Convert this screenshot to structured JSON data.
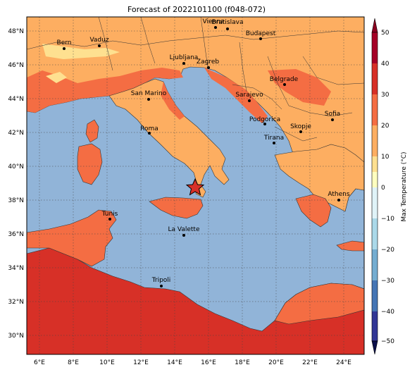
{
  "title": "Forecast of 2022101100 (f048-072)",
  "lon_ticks": [
    "6°E",
    "8°E",
    "10°E",
    "12°E",
    "14°E",
    "16°E",
    "18°E",
    "20°E",
    "22°E",
    "24°E"
  ],
  "lat_ticks": [
    "48°N",
    "46°N",
    "44°N",
    "42°N",
    "40°N",
    "38°N",
    "36°N",
    "34°N",
    "32°N",
    "30°N"
  ],
  "colorbar": {
    "label": "Max Temperature (°C)",
    "ticks": [
      "50",
      "40",
      "30",
      "20",
      "10",
      "0",
      "−10",
      "−20",
      "−30",
      "−40",
      "−50"
    ],
    "colors": [
      "#a50026",
      "#d73027",
      "#f46d43",
      "#fdae61",
      "#fee090",
      "#ffffbf",
      "#e0f3f8",
      "#abd9e9",
      "#74add1",
      "#4575b4",
      "#313695",
      "#2a2f8a"
    ]
  },
  "map_colors": {
    "sea": "#91b4d8",
    "land_20_30": "#fdae61",
    "land_30_40": "#f46d43",
    "land_40_50": "#d73027",
    "land_10_20": "#fee090"
  },
  "marker_icon": "star-marker",
  "cities": [
    {
      "name": "Bern"
    },
    {
      "name": "Vaduz"
    },
    {
      "name": "Vienna"
    },
    {
      "name": "Bratislava"
    },
    {
      "name": "Budapest"
    },
    {
      "name": "Ljubljana"
    },
    {
      "name": "Zagreb"
    },
    {
      "name": "Belgrade"
    },
    {
      "name": "San Marino"
    },
    {
      "name": "Sarajevo"
    },
    {
      "name": "Sofia"
    },
    {
      "name": "Podgorica"
    },
    {
      "name": "Skopje"
    },
    {
      "name": "Roma"
    },
    {
      "name": "Tirana"
    },
    {
      "name": "Athens"
    },
    {
      "name": "Tunis"
    },
    {
      "name": "La Valette"
    },
    {
      "name": "Tripoli"
    }
  ]
}
